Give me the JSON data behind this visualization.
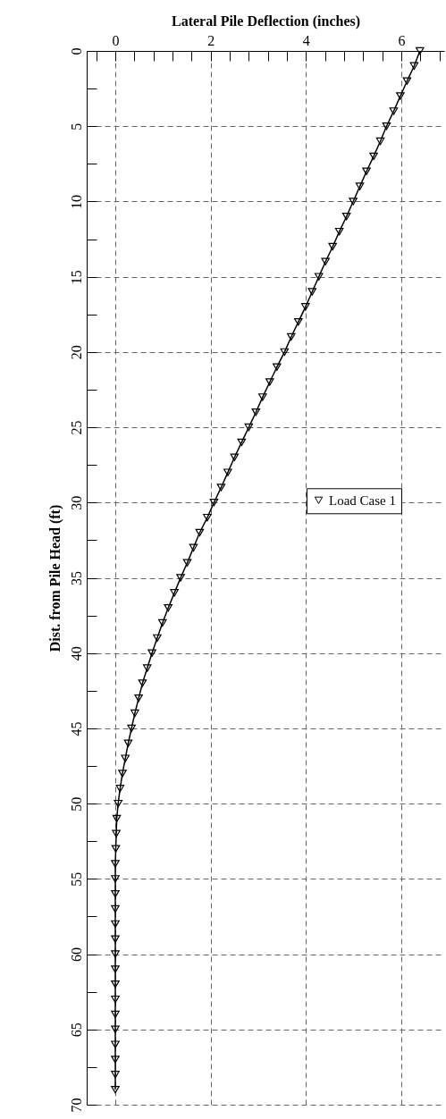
{
  "chart_data": {
    "type": "line",
    "xlabel": "Lateral Pile Deflection (inches)",
    "ylabel": "Dist. from Pile Head (ft)",
    "xlim": [
      -0.6,
      6.9
    ],
    "ylim": [
      70,
      0
    ],
    "xticks": [
      {
        "value": -0.4,
        "label": null
      },
      0,
      {
        "value": 0.4,
        "label": null
      },
      {
        "value": 0.8,
        "label": null
      },
      {
        "value": 1.2,
        "label": null
      },
      {
        "value": 1.6,
        "label": null
      },
      2,
      {
        "value": 2.4,
        "label": null
      },
      {
        "value": 2.8,
        "label": null
      },
      {
        "value": 3.2,
        "label": null
      },
      {
        "value": 3.6,
        "label": null
      },
      4,
      {
        "value": 4.4,
        "label": null
      },
      {
        "value": 4.8,
        "label": null
      },
      {
        "value": 5.2,
        "label": null
      },
      {
        "value": 5.6,
        "label": null
      },
      6,
      {
        "value": 6.4,
        "label": null
      },
      {
        "value": 6.8,
        "label": null
      }
    ],
    "yticks": [
      0,
      {
        "value": 2.5,
        "label": null
      },
      5,
      {
        "value": 7.5,
        "label": null
      },
      10,
      {
        "value": 12.5,
        "label": null
      },
      15,
      {
        "value": 17.5,
        "label": null
      },
      20,
      {
        "value": 22.5,
        "label": null
      },
      25,
      {
        "value": 27.5,
        "label": null
      },
      30,
      {
        "value": 32.5,
        "label": null
      },
      35,
      {
        "value": 37.5,
        "label": null
      },
      40,
      {
        "value": 42.5,
        "label": null
      },
      45,
      {
        "value": 47.5,
        "label": null
      },
      50,
      {
        "value": 52.5,
        "label": null
      },
      55,
      {
        "value": 57.5,
        "label": null
      },
      60,
      {
        "value": 62.5,
        "label": null
      },
      65,
      {
        "value": 67.5,
        "label": null
      },
      70
    ],
    "grid": true,
    "legend": "right",
    "marker": "triangle",
    "line_style": "solid",
    "series": [
      {
        "name": "Load Case 1",
        "color": "#000000",
        "x": [
          6.39,
          6.27,
          6.12,
          5.98,
          5.84,
          5.69,
          5.56,
          5.42,
          5.27,
          5.13,
          4.99,
          4.85,
          4.7,
          4.56,
          4.41,
          4.27,
          4.13,
          3.99,
          3.84,
          3.69,
          3.55,
          3.39,
          3.24,
          3.09,
          2.95,
          2.8,
          2.65,
          2.5,
          2.36,
          2.22,
          2.07,
          1.93,
          1.77,
          1.64,
          1.51,
          1.37,
          1.24,
          1.11,
          0.99,
          0.88,
          0.77,
          0.67,
          0.57,
          0.49,
          0.41,
          0.34,
          0.27,
          0.21,
          0.15,
          0.1,
          0.06,
          0.03,
          0.02,
          0.01,
          0,
          0,
          0,
          0,
          0,
          0,
          0,
          0,
          0,
          0,
          0,
          0,
          0,
          0,
          0,
          0
        ],
        "values": [
          0,
          1,
          2,
          3,
          4,
          5,
          6,
          7,
          8,
          9,
          10,
          11,
          12,
          13,
          14,
          15,
          16,
          17,
          18,
          19,
          20,
          21,
          22,
          23,
          24,
          25,
          26,
          27,
          28,
          29,
          30,
          31,
          32,
          33,
          34,
          35,
          36,
          37,
          38,
          39,
          40,
          41,
          42,
          43,
          44,
          45,
          46,
          47,
          48,
          49,
          50,
          51,
          52,
          53,
          54,
          55,
          56,
          57,
          58,
          59,
          60,
          61,
          62,
          63,
          64,
          65,
          66,
          67,
          68,
          69
        ]
      }
    ]
  }
}
